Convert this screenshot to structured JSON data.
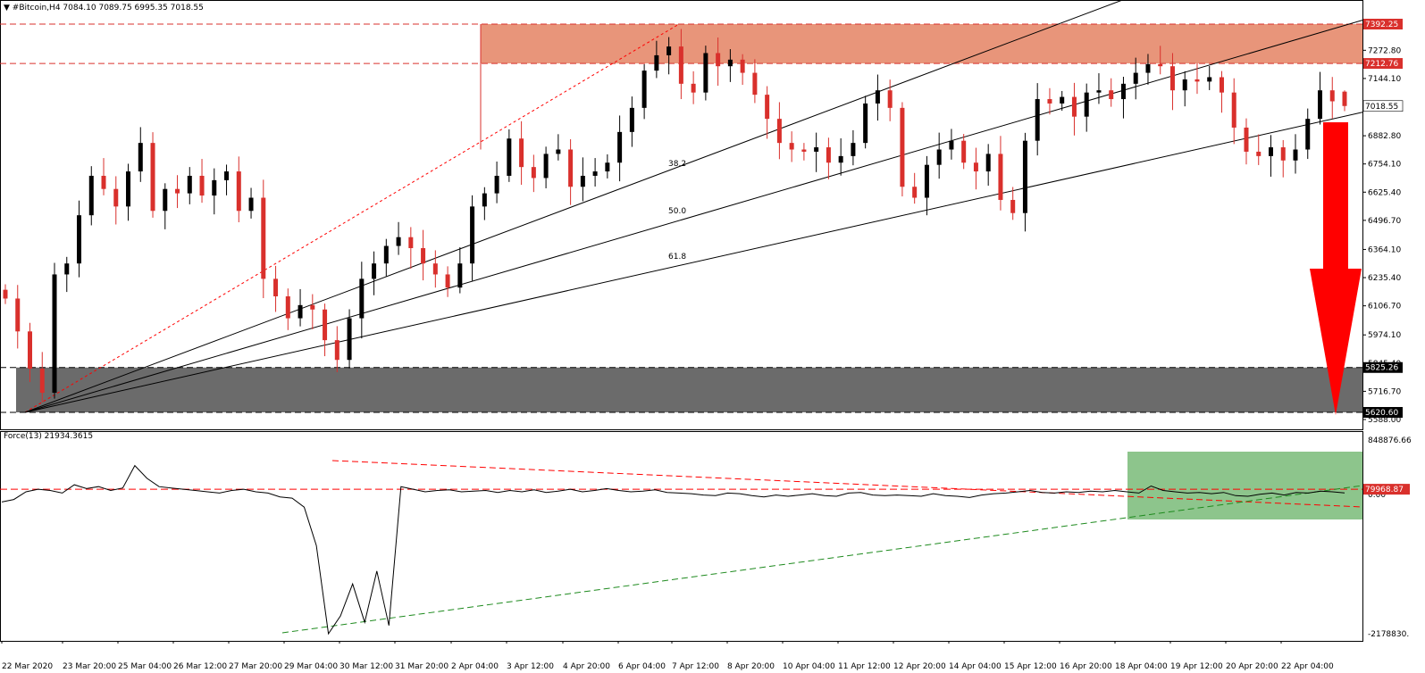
{
  "header": {
    "title": "▼ #Bitcoin,H4  7084.10 7089.75 6995.35 7018.55",
    "indicator_title": "Force(13) 21934.3615"
  },
  "colors": {
    "bull": "#000000",
    "bear": "#d9302c",
    "resistance_zone": "#e8957a",
    "support_zone": "#6b6b6b",
    "force_zone": "#8dc58c",
    "arrow": "#ff0000",
    "force_line": "#000000",
    "trend_red": "#ff0000",
    "trend_green": "#1e8a1e"
  },
  "chart_data": [
    {
      "type": "candlestick",
      "symbol": "#Bitcoin",
      "timeframe": "H4",
      "title": "#Bitcoin,H4",
      "ohlc_last": {
        "open": 7084.1,
        "high": 7089.75,
        "low": 6995.35,
        "close": 7018.55
      },
      "ylim": [
        5588.0,
        7392.25
      ],
      "y_ticks": [
        "7272.80",
        "7144.10",
        "7018.55",
        "6882.80",
        "6754.10",
        "6625.40",
        "6496.70",
        "6364.10",
        "6235.40",
        "6106.70",
        "5974.10",
        "5845.40",
        "5716.70",
        "5588.00"
      ],
      "x_ticks": [
        "22 Mar 2020",
        "23 Mar 20:00",
        "25 Mar 04:00",
        "26 Mar 12:00",
        "27 Mar 20:00",
        "29 Mar 04:00",
        "30 Mar 12:00",
        "31 Mar 20:00",
        "2 Apr 04:00",
        "3 Apr 12:00",
        "4 Apr 20:00",
        "6 Apr 04:00",
        "7 Apr 12:00",
        "8 Apr 20:00",
        "10 Apr 04:00",
        "11 Apr 12:00",
        "12 Apr 20:00",
        "14 Apr 04:00",
        "15 Apr 12:00",
        "16 Apr 20:00",
        "18 Apr 04:00",
        "19 Apr 12:00",
        "20 Apr 20:00",
        "22 Apr 04:00"
      ],
      "price_tags": [
        "7392.25",
        "7212.76",
        "7018.55",
        "5825.26",
        "5620.60"
      ],
      "fibonacci_fan_levels": [
        "38.2",
        "50.0",
        "61.8"
      ],
      "zones": [
        {
          "name": "resistance",
          "from": 7212.76,
          "to": 7392.25
        },
        {
          "name": "support",
          "from": 5620.6,
          "to": 5825.26
        }
      ],
      "closes": [
        6140,
        5990,
        5820,
        5710,
        6250,
        6300,
        6520,
        6700,
        6640,
        6560,
        6720,
        6850,
        6540,
        6640,
        6620,
        6700,
        6610,
        6680,
        6720,
        6540,
        6600,
        6230,
        6150,
        6050,
        6110,
        6090,
        5950,
        5860,
        6050,
        6230,
        6300,
        6380,
        6420,
        6370,
        6300,
        6250,
        6190,
        6300,
        6560,
        6620,
        6700,
        6870,
        6740,
        6690,
        6800,
        6820,
        6650,
        6700,
        6720,
        6760,
        6900,
        7010,
        7180,
        7250,
        7290,
        7120,
        7080,
        7260,
        7200,
        7230,
        7170,
        7070,
        6960,
        6850,
        6820,
        6810,
        6830,
        6760,
        6790,
        6850,
        7030,
        7090,
        7010,
        6650,
        6600,
        6750,
        6820,
        6860,
        6760,
        6720,
        6800,
        6590,
        6530,
        6860,
        7050,
        7030,
        7060,
        6970,
        7080,
        7090,
        7050,
        7120,
        7170,
        7210,
        7200,
        7090,
        7140,
        7130,
        7150,
        7080,
        6920,
        6810,
        6790,
        6830,
        6770,
        6820,
        6960,
        7090,
        7040,
        7018.55
      ],
      "series": [
        {
          "name": "#Bitcoin,H4",
          "values": [
            6140,
            5990,
            5820,
            5710,
            6250,
            6300,
            6520,
            6700,
            6640,
            6560,
            6720,
            6850,
            6540,
            6640,
            6620,
            6700,
            6610,
            6680,
            6720,
            6540,
            6600,
            6230,
            6150,
            6050,
            6110,
            6090,
            5950,
            5860,
            6050,
            6230,
            6300,
            6380,
            6420,
            6370,
            6300,
            6250,
            6190,
            6300,
            6560,
            6620,
            6700,
            6870,
            6740,
            6690,
            6800,
            6820,
            6650,
            6700,
            6720,
            6760,
            6900,
            7010,
            7180,
            7250,
            7290,
            7120,
            7080,
            7260,
            7200,
            7230,
            7170,
            7070,
            6960,
            6850,
            6820,
            6810,
            6830,
            6760,
            6790,
            6850,
            7030,
            7090,
            7010,
            6650,
            6600,
            6750,
            6820,
            6860,
            6760,
            6720,
            6800,
            6590,
            6530,
            6860,
            7050,
            7030,
            7060,
            6970,
            7080,
            7090,
            7050,
            7120,
            7170,
            7210,
            7200,
            7090,
            7140,
            7130,
            7150,
            7080,
            6920,
            6810,
            6790,
            6830,
            6770,
            6820,
            6960,
            7090,
            7040,
            7018.55
          ]
        }
      ]
    },
    {
      "type": "line",
      "title": "Force(13) 21934.3615",
      "indicator": "Force Index",
      "period": 13,
      "last_value": 21934.3615,
      "ylim": [
        -2178830,
        848876.66
      ],
      "y_ticks": [
        "848876.66",
        "79968.87",
        "0.00",
        "-2178830."
      ],
      "price_tags": [
        "79968.87"
      ],
      "levels": [
        {
          "name": "horizontal",
          "value": 79968.87
        }
      ],
      "series": [
        {
          "name": "Force(13)",
          "values": [
            -120000,
            -80000,
            40000,
            80000,
            60000,
            20000,
            150000,
            90000,
            120000,
            60000,
            100000,
            450000,
            250000,
            120000,
            100000,
            80000,
            60000,
            40000,
            20000,
            60000,
            80000,
            40000,
            20000,
            -40000,
            -60000,
            -200000,
            -800000,
            -2178830,
            -1900000,
            -1400000,
            -2000000,
            -1200000,
            -2050000,
            120000,
            80000,
            40000,
            60000,
            70000,
            40000,
            50000,
            60000,
            30000,
            60000,
            40000,
            70000,
            30000,
            50000,
            80000,
            40000,
            60000,
            90000,
            60000,
            40000,
            50000,
            70000,
            30000,
            20000,
            10000,
            -10000,
            -20000,
            20000,
            10000,
            -20000,
            -40000,
            -10000,
            -30000,
            -10000,
            10000,
            -20000,
            -30000,
            20000,
            30000,
            -10000,
            -20000,
            -10000,
            -20000,
            -30000,
            10000,
            -20000,
            -30000,
            -50000,
            -10000,
            10000,
            20000,
            40000,
            60000,
            30000,
            20000,
            40000,
            30000,
            50000,
            40000,
            60000,
            40000,
            20000,
            130000,
            60000,
            40000,
            20000,
            30000,
            10000,
            30000,
            -20000,
            -30000,
            0,
            20000,
            -10000,
            30000,
            20000,
            50000,
            40000,
            21934.36
          ]
        }
      ]
    }
  ]
}
